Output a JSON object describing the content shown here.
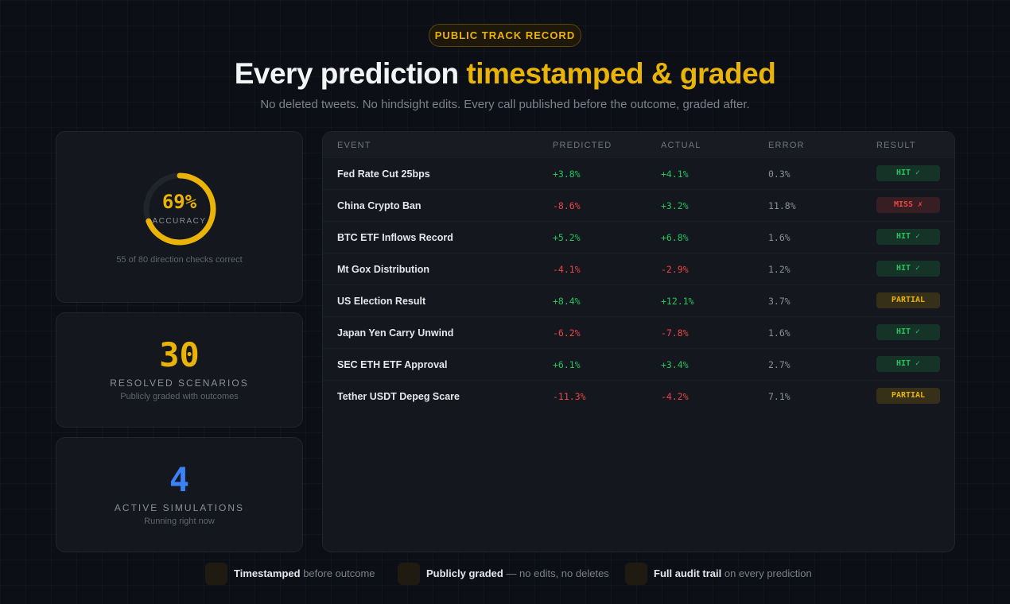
{
  "badge": "PUBLIC TRACK RECORD",
  "header": {
    "title_main": "Every prediction",
    "title_accent": "timestamped & graded",
    "subtitle": "No deleted tweets. No hindsight edits. Every call published before the outcome, graded after."
  },
  "stats": {
    "accuracy": {
      "value": 69,
      "label": "69%",
      "caption": "ACCURACY",
      "note": "55 of 80 direction checks correct",
      "color": "#eab308"
    },
    "resolved": {
      "value": 30,
      "label": "RESOLVED SCENARIOS",
      "note": "Publicly graded with outcomes",
      "color": "#eab308"
    },
    "active": {
      "value": 4,
      "label": "ACTIVE SIMULATIONS",
      "note": "Running right now",
      "color": "#3b82f6"
    }
  },
  "table": {
    "columns": [
      "EVENT",
      "PREDICTED",
      "ACTUAL",
      "ERROR",
      "RESULT"
    ],
    "rows": [
      {
        "event": "Fed Rate Cut 25bps",
        "predicted": "+3.8%",
        "actual": "+4.1%",
        "error": "0.3%",
        "result": {
          "text": "HIT ✓",
          "color": "#22c55e"
        }
      },
      {
        "event": "China Crypto Ban",
        "predicted": "-8.6%",
        "actual": "+3.2%",
        "error": "11.8%",
        "result": {
          "text": "MISS ✗",
          "color": "#ef4444"
        }
      },
      {
        "event": "BTC ETF Inflows Record",
        "predicted": "+5.2%",
        "actual": "+6.8%",
        "error": "1.6%",
        "result": {
          "text": "HIT ✓",
          "color": "#22c55e"
        }
      },
      {
        "event": "Mt Gox Distribution",
        "predicted": "-4.1%",
        "actual": "-2.9%",
        "error": "1.2%",
        "result": {
          "text": "HIT ✓",
          "color": "#22c55e"
        }
      },
      {
        "event": "US Election Result",
        "predicted": "+8.4%",
        "actual": "+12.1%",
        "error": "3.7%",
        "result": {
          "text": "PARTIAL",
          "color": "#eab308"
        }
      },
      {
        "event": "Japan Yen Carry Unwind",
        "predicted": "-6.2%",
        "actual": "-7.8%",
        "error": "1.6%",
        "result": {
          "text": "HIT ✓",
          "color": "#22c55e"
        }
      },
      {
        "event": "SEC ETH ETF Approval",
        "predicted": "+6.1%",
        "actual": "+3.4%",
        "error": "2.7%",
        "result": {
          "text": "HIT ✓",
          "color": "#22c55e"
        }
      },
      {
        "event": "Tether USDT Depeg Scare",
        "predicted": "-11.3%",
        "actual": "-4.2%",
        "error": "7.1%",
        "result": {
          "text": "PARTIAL",
          "color": "#eab308"
        }
      }
    ]
  },
  "footer": [
    {
      "strong": "Timestamped",
      "rest": "before outcome"
    },
    {
      "strong": "Publicly graded",
      "rest": "— no edits, no deletes"
    },
    {
      "strong": "Full audit trail",
      "rest": "on every prediction"
    }
  ]
}
